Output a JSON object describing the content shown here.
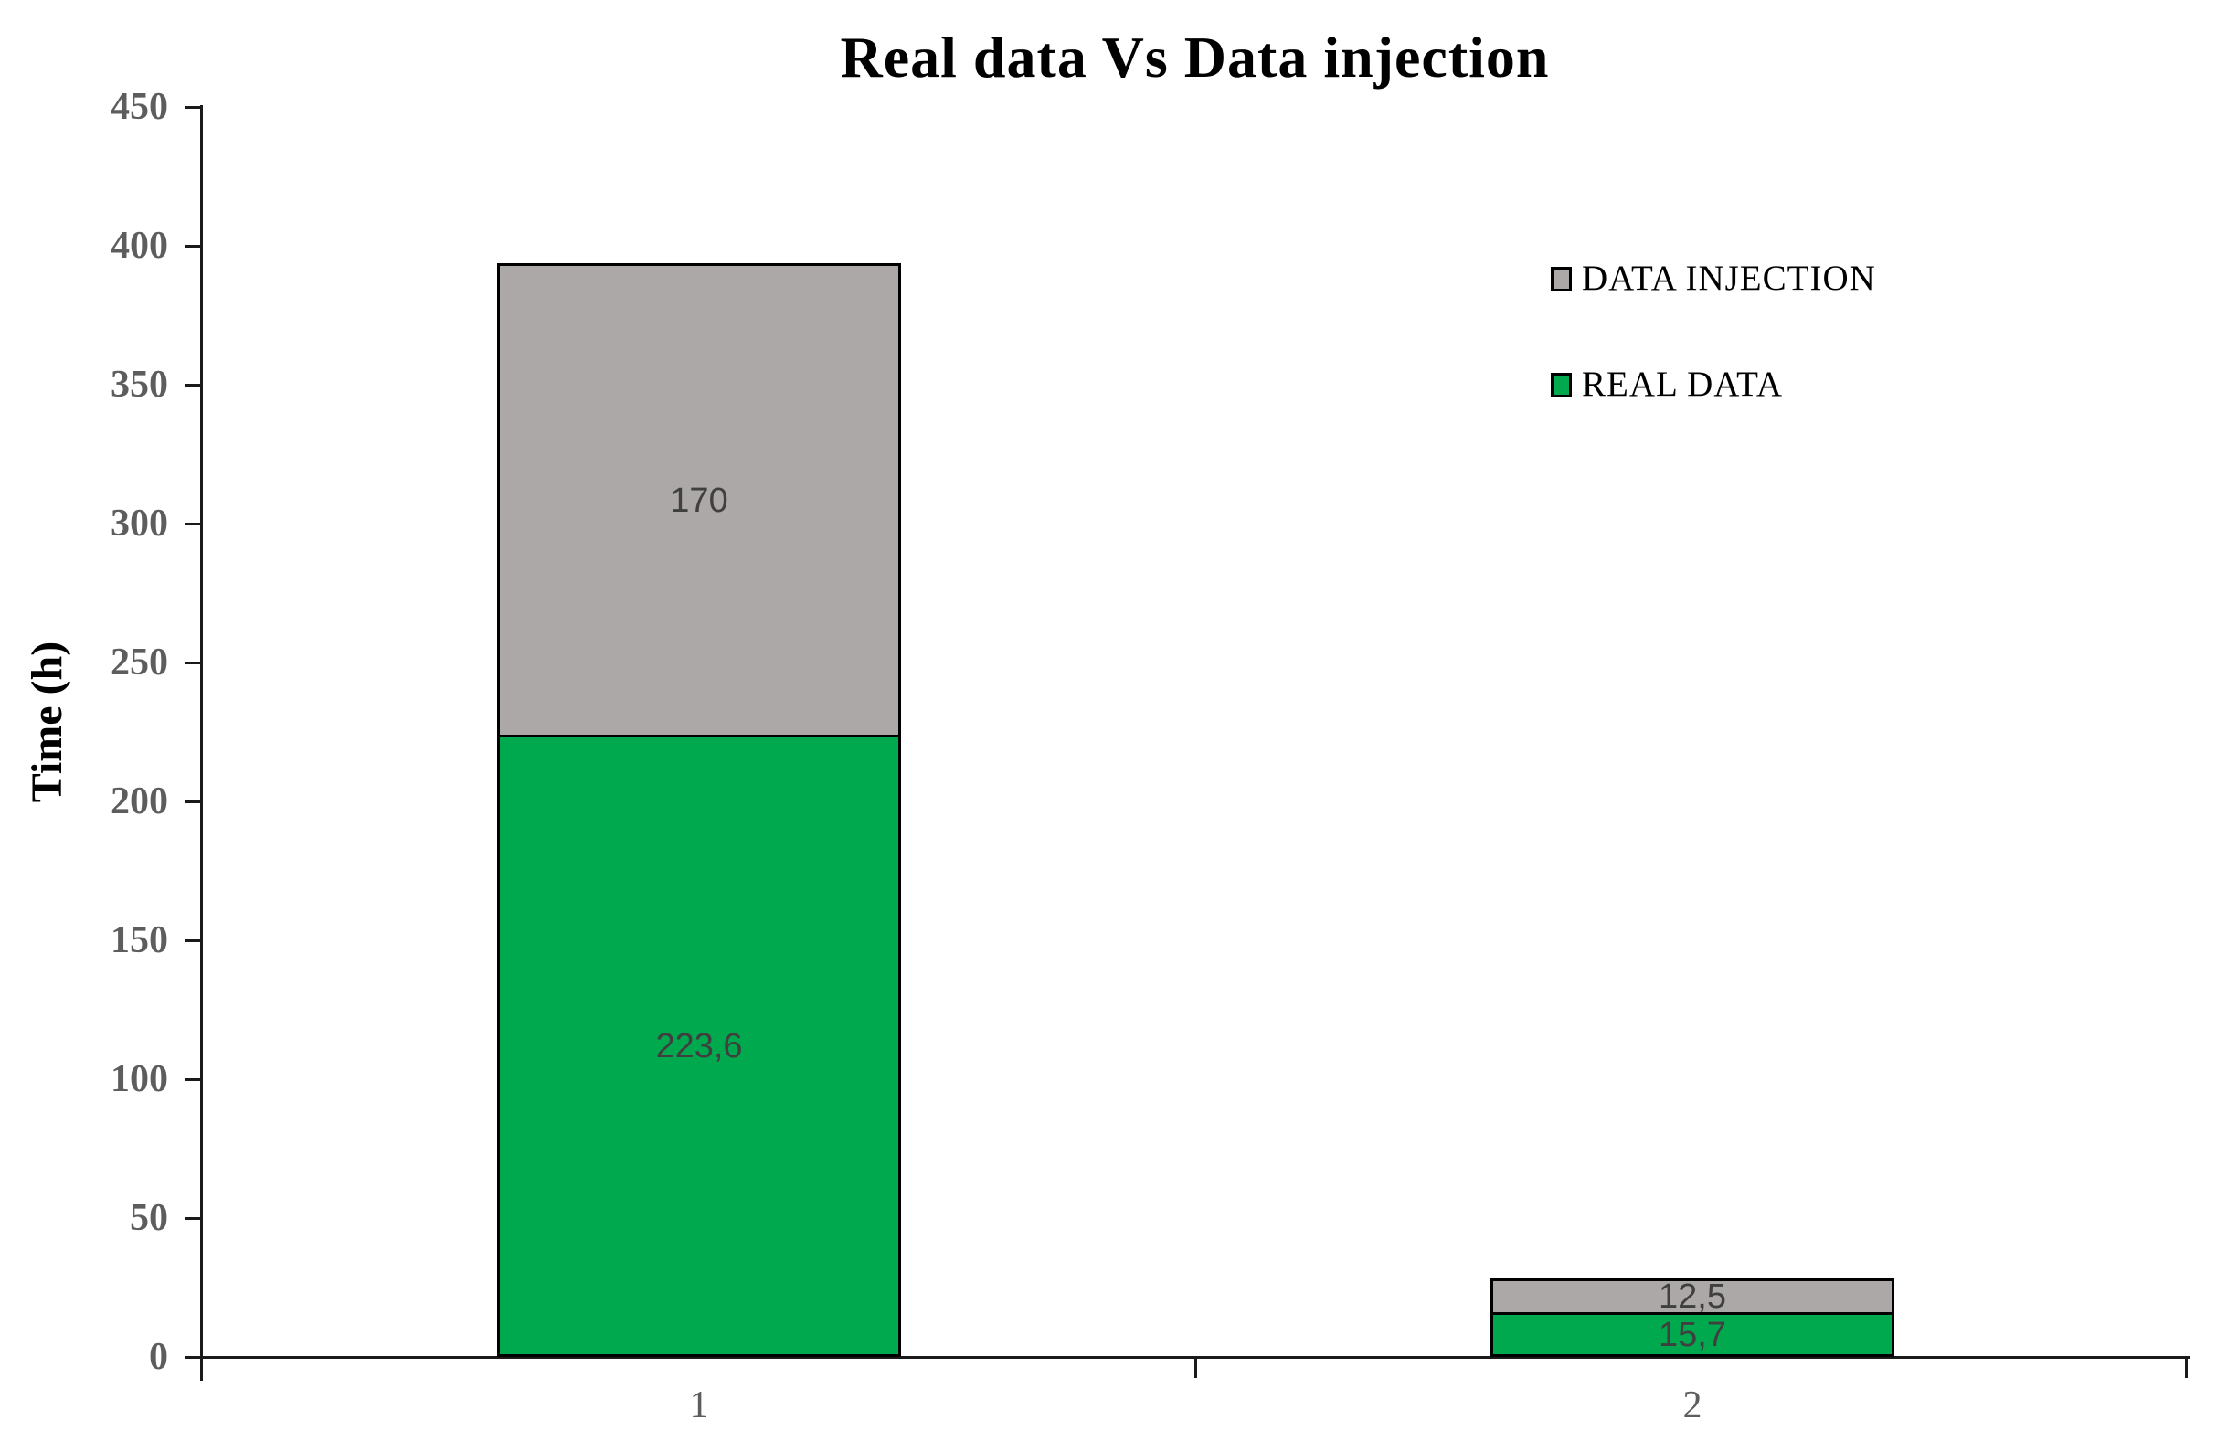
{
  "chart_data": {
    "type": "bar",
    "stacked": true,
    "title": "Real data Vs Data injection",
    "ylabel": "Time (h)",
    "xlabel": "",
    "categories": [
      "1",
      "2"
    ],
    "series": [
      {
        "name": "REAL DATA",
        "color": "#00A84E",
        "values": [
          223.6,
          15.7
        ],
        "data_labels": [
          "223,6",
          "15,7"
        ]
      },
      {
        "name": "DATA INJECTION",
        "color": "#ACA8A7",
        "values": [
          170,
          12.5
        ],
        "data_labels": [
          "170",
          "12,5"
        ]
      }
    ],
    "legend_order": [
      "DATA INJECTION",
      "REAL DATA"
    ],
    "legend_position": "upper-right",
    "ylim": [
      0,
      450
    ],
    "ytick_step": 50,
    "ytick_labels": [
      "0",
      "50",
      "100",
      "150",
      "200",
      "250",
      "300",
      "350",
      "400",
      "450"
    ],
    "grid": false,
    "axis_color": "#1a1a1a",
    "tick_label_color": "#5d5d5d",
    "data_label_color": "#3f3f3f",
    "background_color": "#ffffff"
  }
}
